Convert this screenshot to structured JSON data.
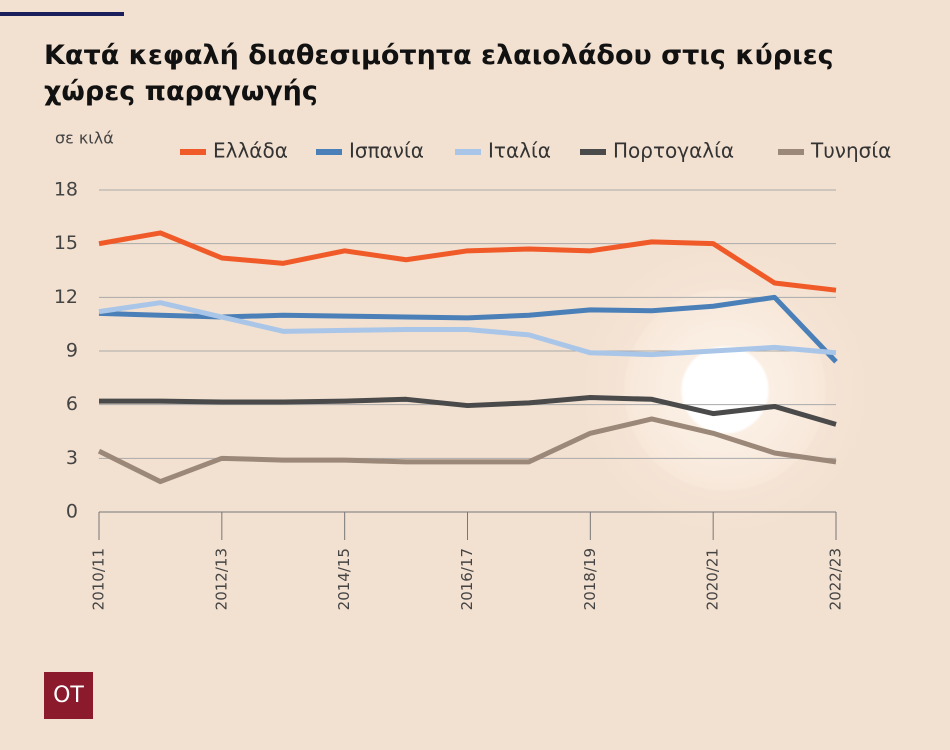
{
  "chart_data": {
    "type": "line",
    "title": "Κατά κεφαλή διαθεσιμότητα ελαιολάδου στις κύριες χώρες παραγωγής",
    "y_label": "σε κιλά",
    "logo": "OT",
    "categories": [
      "2010/11",
      null,
      "2012/13",
      null,
      "2014/15",
      null,
      "2016/17",
      null,
      "2018/19",
      null,
      "2020/21",
      null,
      "2022/23"
    ],
    "ylim": [
      0,
      18
    ],
    "yticks": [
      0,
      3,
      6,
      9,
      12,
      15,
      18
    ],
    "grid": true,
    "series": [
      {
        "name": "Ελλάδα",
        "color": "#f05a28",
        "values": [
          15.0,
          15.6,
          14.2,
          13.9,
          14.6,
          14.1,
          14.6,
          14.7,
          14.6,
          15.1,
          15.0,
          12.8,
          12.4
        ]
      },
      {
        "name": "Ισπανία",
        "color": "#4a7fb8",
        "values": [
          11.1,
          11.0,
          10.9,
          11.0,
          10.95,
          10.9,
          10.85,
          11.0,
          11.3,
          11.25,
          11.5,
          12.0,
          8.4
        ]
      },
      {
        "name": "Ιταλία",
        "color": "#a9c6e8",
        "values": [
          11.2,
          11.7,
          10.9,
          10.1,
          10.15,
          10.2,
          10.2,
          9.9,
          8.9,
          8.8,
          9.0,
          9.2,
          8.9
        ]
      },
      {
        "name": "Πορτογαλία",
        "color": "#4a4a4a",
        "values": [
          6.2,
          6.2,
          6.15,
          6.15,
          6.2,
          6.3,
          5.95,
          6.1,
          6.4,
          6.3,
          5.5,
          5.9,
          4.9
        ]
      },
      {
        "name": "Τυνησία",
        "color": "#9c8878",
        "values": [
          3.4,
          1.7,
          3.0,
          2.9,
          2.9,
          2.8,
          2.8,
          2.8,
          4.4,
          5.2,
          4.4,
          3.3,
          2.8
        ]
      }
    ]
  }
}
